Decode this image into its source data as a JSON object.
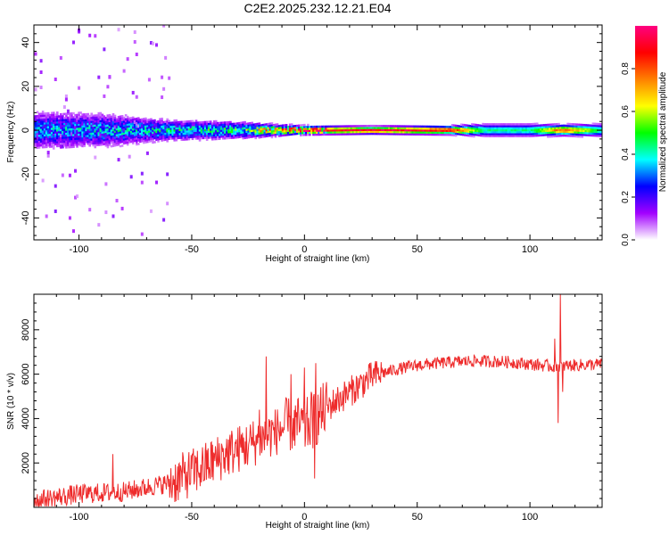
{
  "figure": {
    "title": "C2E2.2025.232.12.21.E04"
  },
  "chart_data": [
    {
      "type": "heatmap",
      "xlabel": "Height of straight line (km)",
      "ylabel": "Frequency (Hz)",
      "xlim": [
        -120,
        132
      ],
      "ylim": [
        -50,
        48
      ],
      "x_ticks": [
        -100,
        -50,
        0,
        50,
        100
      ],
      "y_ticks": [
        -40,
        -20,
        0,
        20,
        40
      ],
      "colorbar": {
        "label": "Normalized spectral amplitude",
        "range": [
          0.0,
          1.0
        ],
        "ticks": [
          0.0,
          0.2,
          0.4,
          0.6,
          0.8
        ],
        "tick_labels": [
          "0.0",
          "0.2",
          "0.4",
          "0.6",
          "0.8"
        ],
        "colormap": [
          "#ffffff",
          "#a200ff",
          "#0000ff",
          "#00ffff",
          "#00ff00",
          "#ffff00",
          "#ff8000",
          "#ff0000",
          "#ff0080"
        ]
      },
      "band_center_hz": 0,
      "band_profile": [
        {
          "x": -120,
          "half_width_hz": 9,
          "peak_amplitude": 0.3
        },
        {
          "x": -90,
          "half_width_hz": 8,
          "peak_amplitude": 0.33
        },
        {
          "x": -60,
          "half_width_hz": 5,
          "peak_amplitude": 0.35
        },
        {
          "x": -30,
          "half_width_hz": 4,
          "peak_amplitude": 0.42
        },
        {
          "x": -10,
          "half_width_hz": 2.5,
          "peak_amplitude": 0.7
        },
        {
          "x": 0,
          "half_width_hz": 2,
          "peak_amplitude": 0.85
        },
        {
          "x": 30,
          "half_width_hz": 1.8,
          "peak_amplitude": 0.95
        },
        {
          "x": 65,
          "half_width_hz": 2,
          "peak_amplitude": 0.92
        },
        {
          "x": 80,
          "half_width_hz": 3,
          "peak_amplitude": 0.45
        },
        {
          "x": 100,
          "half_width_hz": 3,
          "peak_amplitude": 0.45
        },
        {
          "x": 115,
          "half_width_hz": 2.5,
          "peak_amplitude": 0.85
        },
        {
          "x": 132,
          "half_width_hz": 3,
          "peak_amplitude": 0.45
        }
      ],
      "scatter_region_x": [
        -120,
        -60
      ]
    },
    {
      "type": "line",
      "xlabel": "Height of straight line (km)",
      "ylabel": "SNR (10 * v/v)",
      "xlim": [
        -120,
        132
      ],
      "ylim": [
        0,
        9600
      ],
      "x_ticks": [
        -100,
        -50,
        0,
        50,
        100
      ],
      "y_ticks": [
        2000,
        4000,
        6000,
        8000
      ],
      "color": "#ee2b2b",
      "series": [
        {
          "name": "SNR",
          "trend": [
            {
              "x": -120,
              "y": 300
            },
            {
              "x": -100,
              "y": 600
            },
            {
              "x": -80,
              "y": 700
            },
            {
              "x": -60,
              "y": 1100
            },
            {
              "x": -45,
              "y": 1800
            },
            {
              "x": -35,
              "y": 2400
            },
            {
              "x": -25,
              "y": 2800
            },
            {
              "x": -15,
              "y": 3300
            },
            {
              "x": -5,
              "y": 3800
            },
            {
              "x": 0,
              "y": 3600
            },
            {
              "x": 5,
              "y": 4000
            },
            {
              "x": 10,
              "y": 4500
            },
            {
              "x": 20,
              "y": 5200
            },
            {
              "x": 30,
              "y": 5900
            },
            {
              "x": 40,
              "y": 6200
            },
            {
              "x": 50,
              "y": 6400
            },
            {
              "x": 60,
              "y": 6500
            },
            {
              "x": 75,
              "y": 6600
            },
            {
              "x": 90,
              "y": 6550
            },
            {
              "x": 100,
              "y": 6450
            },
            {
              "x": 110,
              "y": 6350
            },
            {
              "x": 120,
              "y": 6400
            },
            {
              "x": 132,
              "y": 6450
            }
          ],
          "spikes": [
            {
              "x": -85,
              "y": 2400
            },
            {
              "x": -20,
              "y": 4400
            },
            {
              "x": -17,
              "y": 6800
            },
            {
              "x": -14,
              "y": 3800
            },
            {
              "x": -6,
              "y": 6000
            },
            {
              "x": 0,
              "y": 6300
            },
            {
              "x": 3,
              "y": 5200
            },
            {
              "x": 5,
              "y": 6500
            },
            {
              "x": 111,
              "y": 7600
            },
            {
              "x": 112.5,
              "y": 3800
            },
            {
              "x": 113.5,
              "y": 9600
            },
            {
              "x": 114.5,
              "y": 5200
            }
          ],
          "dips": [
            {
              "x": 4.5,
              "y": 1300
            }
          ]
        }
      ]
    }
  ]
}
